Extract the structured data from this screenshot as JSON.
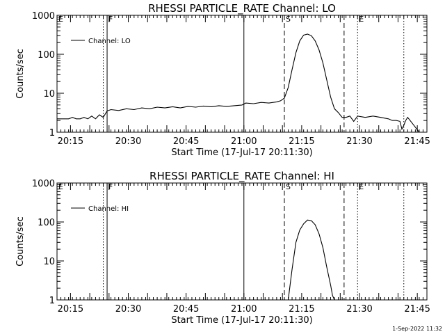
{
  "footer_timestamp": "1-Sep-2022 11:32",
  "chart_data": [
    {
      "type": "line",
      "title": "RHESSI PARTICLE_RATE Channel: LO",
      "xlabel": "Start Time (17-Jul-17 20:11:30)",
      "ylabel": "Counts/sec",
      "yscale": "log",
      "ylim": [
        1,
        1000
      ],
      "xlim_minutes": [
        0,
        96
      ],
      "x_tick_labels": [
        "20:15",
        "20:30",
        "20:45",
        "21:00",
        "21:15",
        "21:30",
        "21:45"
      ],
      "y_tick_labels": [
        "1",
        "10",
        "100",
        "1000"
      ],
      "legend": {
        "label": "Channel: LO",
        "placement": "top-left"
      },
      "markers": [
        {
          "label": "E",
          "minute": 0,
          "style": "solid"
        },
        {
          "label": "",
          "minute": 12,
          "style": "dotted"
        },
        {
          "label": "F",
          "minute": 13,
          "style": "solid"
        },
        {
          "label": "",
          "minute": 48.5,
          "style": "solid"
        },
        {
          "label": "S",
          "minute": 59,
          "style": "dashed"
        },
        {
          "label": "",
          "minute": 74.5,
          "style": "dashed"
        },
        {
          "label": "E",
          "minute": 78,
          "style": "dotted"
        },
        {
          "label": "",
          "minute": 90,
          "style": "dotted"
        }
      ],
      "series": [
        {
          "name": "Channel: LO",
          "x": [
            0,
            2,
            3,
            4,
            5,
            6,
            7,
            8,
            9,
            10,
            11,
            12,
            13,
            14,
            16,
            18,
            20,
            22,
            24,
            26,
            28,
            30,
            32,
            34,
            36,
            38,
            40,
            42,
            44,
            46,
            48,
            49,
            51,
            53,
            55,
            57,
            58,
            59,
            60,
            61,
            62,
            63,
            64,
            65,
            66,
            67,
            68,
            69,
            70,
            71,
            72,
            73,
            74,
            75,
            76,
            77,
            78,
            80,
            82,
            84,
            86,
            87,
            88,
            89,
            89.5,
            90,
            90.5,
            91,
            92,
            94,
            96
          ],
          "y": [
            2.2,
            2.2,
            2.2,
            2.4,
            2.2,
            2.2,
            2.4,
            2.2,
            2.6,
            2.2,
            2.8,
            2.4,
            3.5,
            3.8,
            3.6,
            4.0,
            3.8,
            4.2,
            4.0,
            4.4,
            4.2,
            4.5,
            4.2,
            4.6,
            4.4,
            4.7,
            4.5,
            4.8,
            4.6,
            4.8,
            5.0,
            5.6,
            5.4,
            5.8,
            5.6,
            6.0,
            6.4,
            7.5,
            14,
            40,
            110,
            220,
            310,
            330,
            300,
            220,
            130,
            60,
            22,
            8,
            4,
            3.2,
            2.4,
            2.4,
            2.6,
            1.9,
            2.6,
            2.4,
            2.6,
            2.4,
            2.2,
            2.0,
            2.0,
            1.9,
            1.2,
            1.5,
            2.0,
            2.4,
            1.8,
            1.0,
            1.0
          ]
        }
      ]
    },
    {
      "type": "line",
      "title": "RHESSI PARTICLE_RATE Channel: HI",
      "xlabel": "Start Time (17-Jul-17 20:11:30)",
      "ylabel": "Counts/sec",
      "yscale": "log",
      "ylim": [
        1,
        1000
      ],
      "xlim_minutes": [
        0,
        96
      ],
      "x_tick_labels": [
        "20:15",
        "20:30",
        "20:45",
        "21:00",
        "21:15",
        "21:30",
        "21:45"
      ],
      "y_tick_labels": [
        "1",
        "10",
        "100",
        "1000"
      ],
      "legend": {
        "label": "Channel: HI",
        "placement": "top-left"
      },
      "markers": [
        {
          "label": "E",
          "minute": 0,
          "style": "solid"
        },
        {
          "label": "",
          "minute": 12,
          "style": "dotted"
        },
        {
          "label": "F",
          "minute": 13,
          "style": "solid"
        },
        {
          "label": "",
          "minute": 48.5,
          "style": "solid"
        },
        {
          "label": "S",
          "minute": 59,
          "style": "dashed"
        },
        {
          "label": "",
          "minute": 74.5,
          "style": "dashed"
        },
        {
          "label": "E",
          "minute": 78,
          "style": "dotted"
        },
        {
          "label": "",
          "minute": 90,
          "style": "dotted"
        }
      ],
      "series": [
        {
          "name": "Channel: HI",
          "x": [
            60,
            61,
            62,
            63,
            64,
            65,
            66,
            67,
            68,
            69,
            70,
            71,
            71.5,
            72
          ],
          "y": [
            1.0,
            6,
            30,
            62,
            90,
            112,
            108,
            85,
            50,
            22,
            7,
            2.4,
            1.3,
            1.0
          ]
        }
      ]
    }
  ]
}
